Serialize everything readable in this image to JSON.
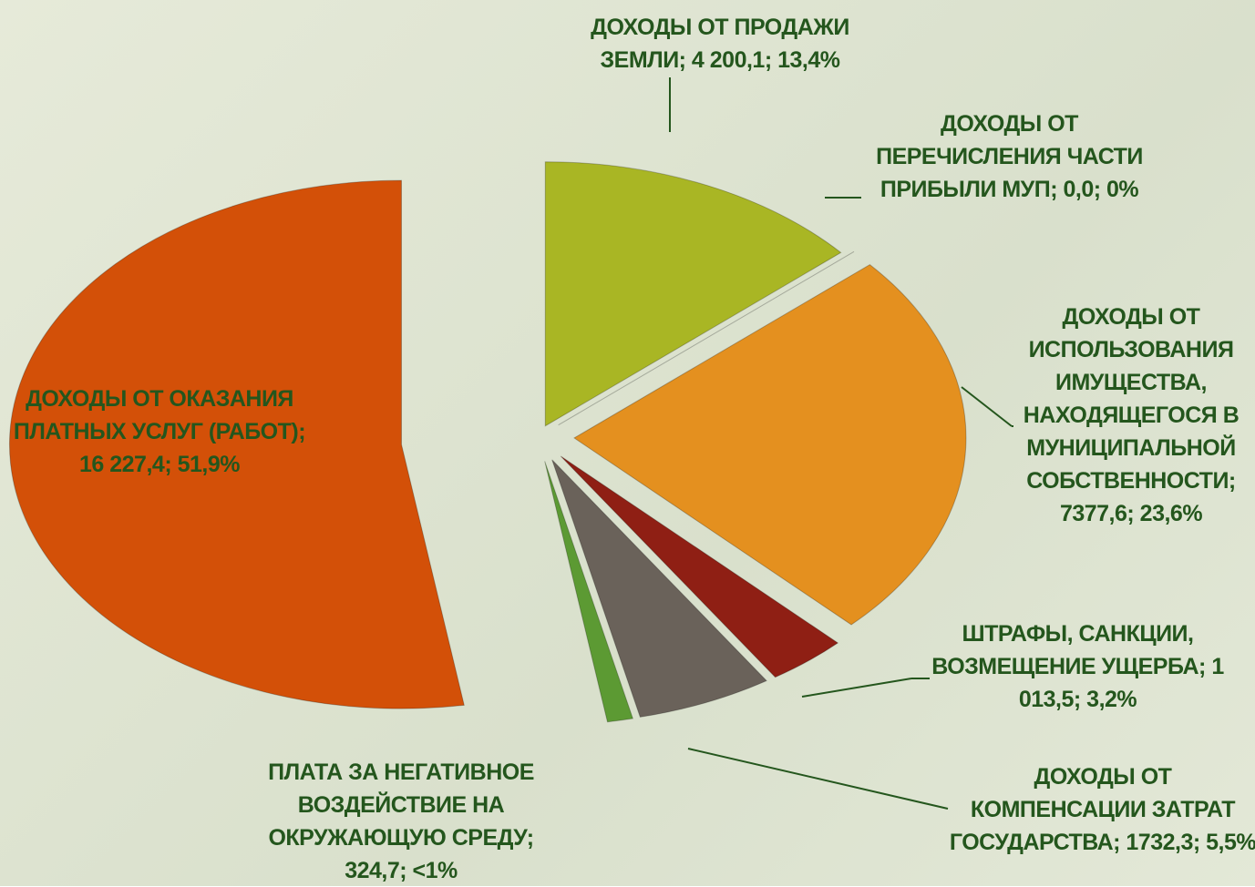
{
  "chart_data": {
    "type": "pie",
    "value_labels": [
      "ДОХОДЫ ОТ ПРОДАЖИ ЗЕМЛИ; 4 200,1; 13,4%",
      "ДОХОДЫ  ОТ ПЕРЕЧИСЛЕНИЯ ЧАСТИ ПРИБЫЛИ МУП;  0,0; 0%",
      "ДОХОДЫ ОТ ИСПОЛЬЗОВАНИЯ ИМУЩЕСТВА, НАХОДЯЩЕГОСЯ В МУНИЦИПАЛЬНОЙ СОБСТВЕННОСТИ; 7377,6; 23,6%",
      "ШТРАФЫ, САНКЦИИ, ВОЗМЕЩЕНИЕ УЩЕРБА; 1 013,5; 3,2%",
      "ДОХОДЫ ОТ КОМПЕНСАЦИИ  ЗАТРАТ ГОСУДАРСТВА; 1732,3; 5,5%",
      "ПЛАТА ЗА НЕГАТИВНОЕ ВОЗДЕЙСТВИЕ НА ОКРУЖАЮЩУЮ СРЕДУ; 324,7; <1%",
      "ДОХОДЫ ОТ ОКАЗАНИЯ ПЛАТНЫХ УСЛУГ (РАБОТ); 16 227,4; 51,9%"
    ],
    "values": [
      4200.1,
      0.0,
      7377.6,
      1013.5,
      1732.3,
      324.7,
      16227.4
    ],
    "colors": [
      "#a9b624",
      "#b0825e",
      "#e4901f",
      "#8f1f14",
      "#6a625a",
      "#5c9a33",
      "#d35008"
    ]
  }
}
